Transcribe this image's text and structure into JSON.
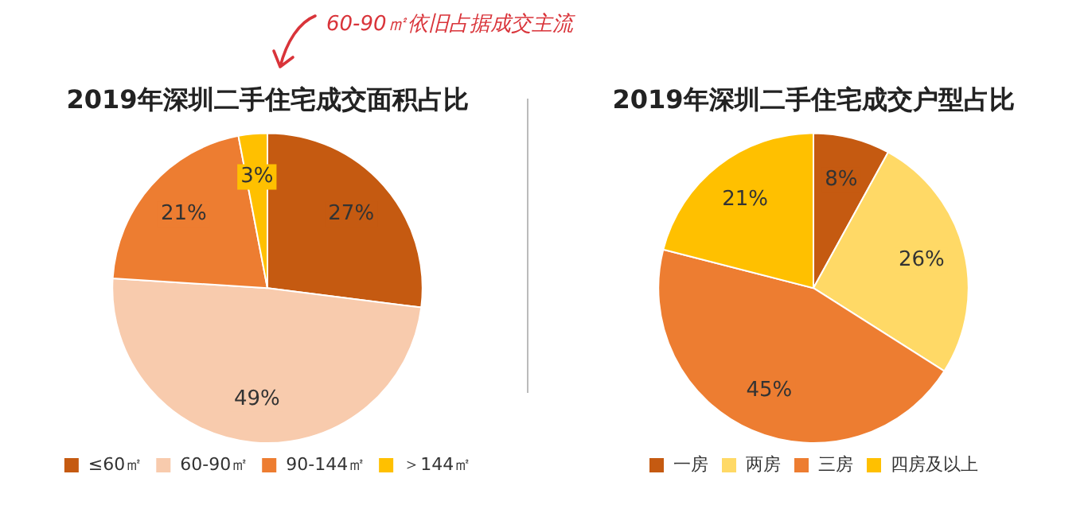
{
  "chart_data": [
    {
      "type": "pie",
      "title": "2019年深圳二手住宅成交面积占比",
      "categories": [
        "≤60㎡",
        "60-90㎡",
        "90-144㎡",
        "＞144㎡"
      ],
      "values": [
        27,
        49,
        21,
        3
      ],
      "colors": [
        "#c55a11",
        "#f8cbad",
        "#ed7d31",
        "#ffc000"
      ],
      "value_labels": [
        "27%",
        "49%",
        "21%",
        "3%"
      ],
      "legend": "bottom",
      "annotations": [
        "60-90㎡依旧占据成交主流"
      ]
    },
    {
      "type": "pie",
      "title": "2019年深圳二手住宅成交户型占比",
      "categories": [
        "一房",
        "两房",
        "三房",
        "四房及以上"
      ],
      "values": [
        8,
        26,
        45,
        21
      ],
      "colors": [
        "#c55a11",
        "#ffd966",
        "#ed7d31",
        "#ffc000"
      ],
      "value_labels": [
        "8%",
        "26%",
        "45%",
        "21%"
      ],
      "legend": "bottom"
    }
  ]
}
